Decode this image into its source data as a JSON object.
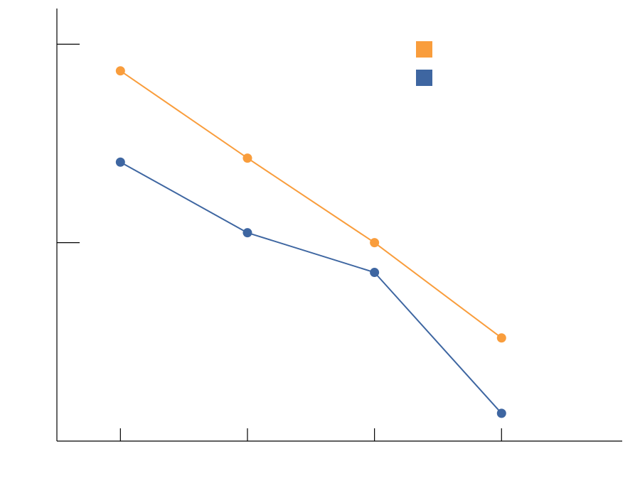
{
  "chart_data": {
    "type": "line",
    "title": "",
    "xlabel": "",
    "ylabel": "",
    "x": [
      1,
      2,
      3,
      4
    ],
    "xlim": [
      0.5,
      4.95
    ],
    "ylim": [
      0,
      10.9
    ],
    "y_ticks": [
      5,
      10
    ],
    "grid": false,
    "legend": {
      "position": "top-right"
    },
    "series": [
      {
        "name": "",
        "color": "#f99d3c",
        "values": [
          9.33,
          7.13,
          5.0,
          2.6
        ]
      },
      {
        "name": "",
        "color": "#3e66a1",
        "values": [
          7.03,
          5.25,
          4.25,
          0.7
        ]
      }
    ]
  }
}
